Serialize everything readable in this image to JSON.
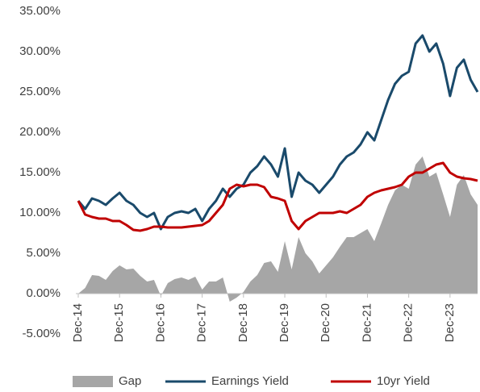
{
  "chart_data": {
    "type": "line",
    "categories": [
      "Dec-14",
      null,
      null,
      null,
      null,
      null,
      "Dec-15",
      null,
      null,
      null,
      null,
      null,
      "Dec-16",
      null,
      null,
      null,
      null,
      null,
      "Dec-17",
      null,
      null,
      null,
      null,
      null,
      "Dec-18",
      null,
      null,
      null,
      null,
      null,
      "Dec-19",
      null,
      null,
      null,
      null,
      null,
      "Dec-20",
      null,
      null,
      null,
      null,
      null,
      "Dec-21",
      null,
      null,
      null,
      null,
      null,
      "Dec-22",
      null,
      null,
      null,
      null,
      null,
      "Dec-23",
      null,
      null,
      null,
      null
    ],
    "series": [
      {
        "name": "Gap",
        "kind": "area",
        "color": "#a6a6a6",
        "values": [
          0,
          0.7,
          2.3,
          2.2,
          1.7,
          2.8,
          3.5,
          3.0,
          3.1,
          2.2,
          1.5,
          1.7,
          -0.3,
          1.3,
          1.8,
          2.0,
          1.7,
          2.1,
          0.5,
          1.5,
          1.5,
          2.0,
          -1.0,
          -0.5,
          0.2,
          1.5,
          2.3,
          3.8,
          4.0,
          2.7,
          6.5,
          3.0,
          7.0,
          5.0,
          4.0,
          2.5,
          3.5,
          4.5,
          5.8,
          7.0,
          7.0,
          7.5,
          8.0,
          6.5,
          8.7,
          11.0,
          12.8,
          13.5,
          13.0,
          16.0,
          17.0,
          14.5,
          15.0,
          12.3,
          9.5,
          13.5,
          14.7,
          12.3,
          11.0
        ]
      },
      {
        "name": "Earnings Yield",
        "kind": "line",
        "color": "#1a4a6b",
        "values": [
          11.5,
          10.5,
          11.8,
          11.5,
          11.0,
          11.8,
          12.5,
          11.5,
          11.0,
          10.0,
          9.5,
          10.0,
          8.0,
          9.5,
          10.0,
          10.2,
          10.0,
          10.5,
          9.0,
          10.5,
          11.5,
          13.0,
          12.0,
          13.0,
          13.5,
          15.0,
          15.8,
          17.0,
          16.0,
          14.5,
          18.0,
          12.0,
          15.0,
          14.0,
          13.5,
          12.5,
          13.5,
          14.5,
          16.0,
          17.0,
          17.5,
          18.5,
          20.0,
          19.0,
          21.5,
          24.0,
          26.0,
          27.0,
          27.5,
          31.0,
          32.0,
          30.0,
          31.0,
          28.5,
          24.5,
          28.0,
          29.0,
          26.5,
          25.0
        ]
      },
      {
        "name": "10yr Yield",
        "kind": "line",
        "color": "#c00000",
        "values": [
          11.5,
          9.8,
          9.5,
          9.3,
          9.3,
          9.0,
          9.0,
          8.5,
          7.9,
          7.8,
          8.0,
          8.3,
          8.3,
          8.2,
          8.2,
          8.2,
          8.3,
          8.4,
          8.5,
          9.0,
          10.0,
          11.0,
          13.0,
          13.5,
          13.3,
          13.5,
          13.5,
          13.2,
          12.0,
          11.8,
          11.5,
          9.0,
          8.0,
          9.0,
          9.5,
          10.0,
          10.0,
          10.0,
          10.2,
          10.0,
          10.5,
          11.0,
          12.0,
          12.5,
          12.8,
          13.0,
          13.2,
          13.5,
          14.5,
          15.0,
          15.0,
          15.5,
          16.0,
          16.2,
          15.0,
          14.5,
          14.3,
          14.2,
          14.0
        ]
      }
    ],
    "ylim": [
      -5,
      35
    ],
    "yticks": [
      {
        "value": -5,
        "label": "-5.00%"
      },
      {
        "value": 0,
        "label": "0.00%"
      },
      {
        "value": 5,
        "label": "5.00%"
      },
      {
        "value": 10,
        "label": "10.00%"
      },
      {
        "value": 15,
        "label": "15.00%"
      },
      {
        "value": 20,
        "label": "20.00%"
      },
      {
        "value": 25,
        "label": "25.00%"
      },
      {
        "value": 30,
        "label": "30.00%"
      },
      {
        "value": 35,
        "label": "35.00%"
      }
    ],
    "legend": "bottom"
  }
}
